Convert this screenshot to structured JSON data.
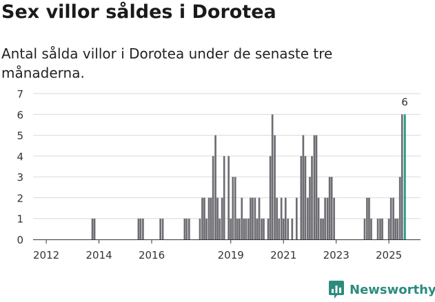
{
  "header": {
    "title": "Sex villor såldes i Dorotea",
    "subtitle": "Antal sålda villor i Dorotea under de senaste tre månaderna."
  },
  "brand": {
    "name": "Newsworthy",
    "icon": "bar-chart-icon",
    "color": "#2b8c7e"
  },
  "colors": {
    "bar": "#6d6c72",
    "highlight": "#2b9a87",
    "grid": "#d9d9d9"
  },
  "chart_data": {
    "type": "bar",
    "title": "Sex villor såldes i Dorotea",
    "xlabel": "",
    "ylabel": "",
    "ylim": [
      0,
      7
    ],
    "yticks": [
      0,
      1,
      2,
      3,
      4,
      5,
      6,
      7
    ],
    "xlim": [
      2011.5,
      2026.2
    ],
    "xticks": [
      "2012",
      "2014",
      "2016",
      "2019",
      "2021",
      "2023",
      "2025"
    ],
    "xtick_positions": [
      2012,
      2014,
      2016,
      2019,
      2021,
      2023,
      2025
    ],
    "bar_width_years": 0.07,
    "annotation": {
      "label": "6",
      "x": 2025.6,
      "value": 6
    },
    "highlight_x": 2025.6,
    "series": [
      {
        "name": "Antal sålda villor",
        "x": [
          2013.75,
          2013.83,
          2015.5,
          2015.58,
          2015.67,
          2016.33,
          2016.42,
          2017.25,
          2017.33,
          2017.42,
          2017.83,
          2017.92,
          2018.0,
          2018.08,
          2018.17,
          2018.25,
          2018.33,
          2018.42,
          2018.5,
          2018.58,
          2018.67,
          2018.75,
          2018.92,
          2019.0,
          2019.08,
          2019.17,
          2019.25,
          2019.33,
          2019.42,
          2019.5,
          2019.58,
          2019.67,
          2019.75,
          2019.83,
          2019.92,
          2020.0,
          2020.08,
          2020.17,
          2020.25,
          2020.33,
          2020.42,
          2020.5,
          2020.58,
          2020.67,
          2020.75,
          2020.83,
          2020.92,
          2021.0,
          2021.08,
          2021.17,
          2021.25,
          2021.33,
          2021.42,
          2021.5,
          2021.67,
          2021.75,
          2021.83,
          2021.92,
          2022.0,
          2022.08,
          2022.17,
          2022.25,
          2022.33,
          2022.42,
          2022.5,
          2022.58,
          2022.67,
          2022.75,
          2022.83,
          2022.92,
          2024.08,
          2024.17,
          2024.25,
          2024.33,
          2024.58,
          2024.67,
          2024.75,
          2025.0,
          2025.08,
          2025.17,
          2025.25,
          2025.33,
          2025.42,
          2025.5,
          2025.6
        ],
        "values": [
          1,
          1,
          1,
          1,
          1,
          1,
          1,
          1,
          1,
          1,
          1,
          2,
          2,
          1,
          2,
          2,
          4,
          5,
          2,
          1,
          2,
          4,
          4,
          1,
          3,
          3,
          1,
          1,
          2,
          1,
          1,
          1,
          2,
          2,
          2,
          1,
          2,
          1,
          1,
          0,
          1,
          4,
          6,
          5,
          2,
          1,
          2,
          1,
          2,
          1,
          0,
          1,
          0,
          2,
          4,
          5,
          4,
          2,
          3,
          4,
          5,
          5,
          2,
          1,
          1,
          2,
          2,
          3,
          3,
          2,
          1,
          2,
          2,
          1,
          1,
          1,
          1,
          1,
          2,
          2,
          1,
          1,
          3,
          6,
          6
        ]
      }
    ]
  }
}
